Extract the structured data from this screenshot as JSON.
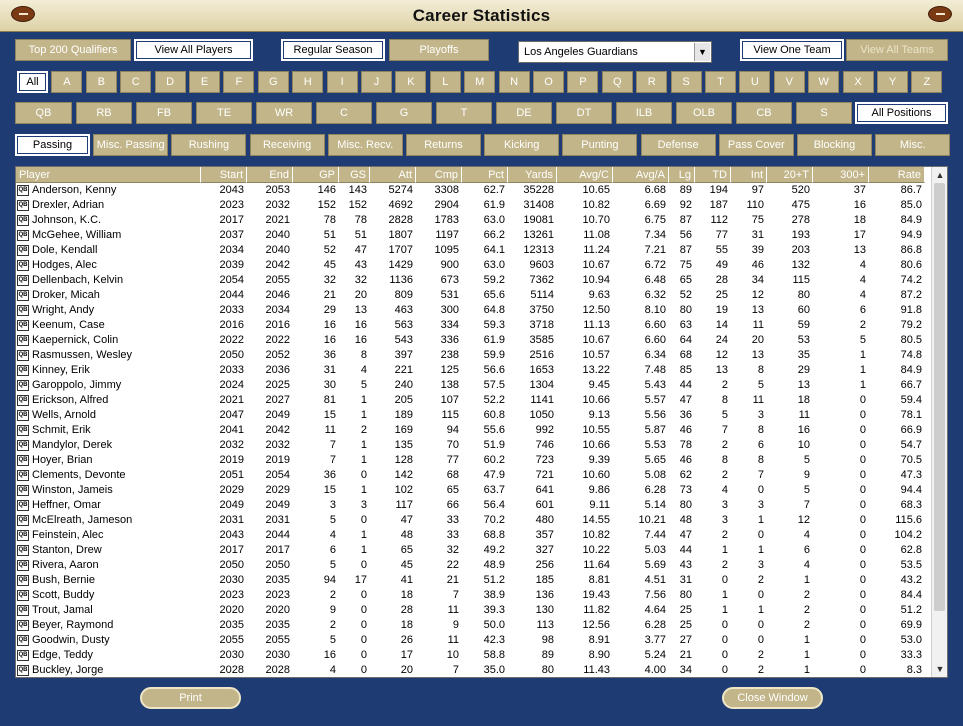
{
  "window": {
    "title": "Career Statistics"
  },
  "icons": {
    "left": "football-icon",
    "right": "football-icon"
  },
  "filters": {
    "top200": "Top 200 Qualifiers",
    "view_all_players": "View All Players",
    "regular_season": "Regular Season",
    "playoffs": "Playoffs",
    "team_select": "Los Angeles Guardians",
    "view_one_team": "View One Team",
    "view_all_teams": "View All Teams"
  },
  "letters": [
    "All",
    "A",
    "B",
    "C",
    "D",
    "E",
    "F",
    "G",
    "H",
    "I",
    "J",
    "K",
    "L",
    "M",
    "N",
    "O",
    "P",
    "Q",
    "R",
    "S",
    "T",
    "U",
    "V",
    "W",
    "X",
    "Y",
    "Z"
  ],
  "positions": [
    "QB",
    "RB",
    "FB",
    "TE",
    "WR",
    "C",
    "G",
    "T",
    "DE",
    "DT",
    "ILB",
    "OLB",
    "CB",
    "S",
    "All Positions"
  ],
  "categories": [
    "Passing",
    "Misc. Passing",
    "Rushing",
    "Receiving",
    "Misc. Recv.",
    "Returns",
    "Kicking",
    "Punting",
    "Defense",
    "Pass Cover",
    "Blocking",
    "Misc."
  ],
  "table": {
    "columns": [
      "Player",
      "Start",
      "End",
      "GP",
      "GS",
      "Att",
      "Cmp",
      "Pct",
      "Yards",
      "Avg/C",
      "Avg/A",
      "Lg",
      "TD",
      "Int",
      "20+T",
      "300+",
      "Rate"
    ],
    "pos_label": "QB",
    "rows": [
      [
        "Anderson, Kenny",
        "2043",
        "2053",
        "146",
        "143",
        "5274",
        "3308",
        "62.7",
        "35228",
        "10.65",
        "6.68",
        "89",
        "194",
        "97",
        "520",
        "37",
        "86.7"
      ],
      [
        "Drexler, Adrian",
        "2023",
        "2032",
        "152",
        "152",
        "4692",
        "2904",
        "61.9",
        "31408",
        "10.82",
        "6.69",
        "92",
        "187",
        "110",
        "475",
        "16",
        "85.0"
      ],
      [
        "Johnson, K.C.",
        "2017",
        "2021",
        "78",
        "78",
        "2828",
        "1783",
        "63.0",
        "19081",
        "10.70",
        "6.75",
        "87",
        "112",
        "75",
        "278",
        "18",
        "84.9"
      ],
      [
        "McGehee, William",
        "2037",
        "2040",
        "51",
        "51",
        "1807",
        "1197",
        "66.2",
        "13261",
        "11.08",
        "7.34",
        "56",
        "77",
        "31",
        "193",
        "17",
        "94.9"
      ],
      [
        "Dole, Kendall",
        "2034",
        "2040",
        "52",
        "47",
        "1707",
        "1095",
        "64.1",
        "12313",
        "11.24",
        "7.21",
        "87",
        "55",
        "39",
        "203",
        "13",
        "86.8"
      ],
      [
        "Hodges, Alec",
        "2039",
        "2042",
        "45",
        "43",
        "1429",
        "900",
        "63.0",
        "9603",
        "10.67",
        "6.72",
        "75",
        "49",
        "46",
        "132",
        "4",
        "80.6"
      ],
      [
        "Dellenbach, Kelvin",
        "2054",
        "2055",
        "32",
        "32",
        "1136",
        "673",
        "59.2",
        "7362",
        "10.94",
        "6.48",
        "65",
        "28",
        "34",
        "115",
        "4",
        "74.2"
      ],
      [
        "Droker, Micah",
        "2044",
        "2046",
        "21",
        "20",
        "809",
        "531",
        "65.6",
        "5114",
        "9.63",
        "6.32",
        "52",
        "25",
        "12",
        "80",
        "4",
        "87.2"
      ],
      [
        "Wright, Andy",
        "2033",
        "2034",
        "29",
        "13",
        "463",
        "300",
        "64.8",
        "3750",
        "12.50",
        "8.10",
        "80",
        "19",
        "13",
        "60",
        "6",
        "91.8"
      ],
      [
        "Keenum, Case",
        "2016",
        "2016",
        "16",
        "16",
        "563",
        "334",
        "59.3",
        "3718",
        "11.13",
        "6.60",
        "63",
        "14",
        "11",
        "59",
        "2",
        "79.2"
      ],
      [
        "Kaepernick, Colin",
        "2022",
        "2022",
        "16",
        "16",
        "543",
        "336",
        "61.9",
        "3585",
        "10.67",
        "6.60",
        "64",
        "24",
        "20",
        "53",
        "5",
        "80.5"
      ],
      [
        "Rasmussen, Wesley",
        "2050",
        "2052",
        "36",
        "8",
        "397",
        "238",
        "59.9",
        "2516",
        "10.57",
        "6.34",
        "68",
        "12",
        "13",
        "35",
        "1",
        "74.8"
      ],
      [
        "Kinney, Erik",
        "2033",
        "2036",
        "31",
        "4",
        "221",
        "125",
        "56.6",
        "1653",
        "13.22",
        "7.48",
        "85",
        "13",
        "8",
        "29",
        "1",
        "84.9"
      ],
      [
        "Garoppolo, Jimmy",
        "2024",
        "2025",
        "30",
        "5",
        "240",
        "138",
        "57.5",
        "1304",
        "9.45",
        "5.43",
        "44",
        "2",
        "5",
        "13",
        "1",
        "66.7"
      ],
      [
        "Erickson, Alfred",
        "2021",
        "2027",
        "81",
        "1",
        "205",
        "107",
        "52.2",
        "1141",
        "10.66",
        "5.57",
        "47",
        "8",
        "11",
        "18",
        "0",
        "59.4"
      ],
      [
        "Wells, Arnold",
        "2047",
        "2049",
        "15",
        "1",
        "189",
        "115",
        "60.8",
        "1050",
        "9.13",
        "5.56",
        "36",
        "5",
        "3",
        "11",
        "0",
        "78.1"
      ],
      [
        "Schmit, Erik",
        "2041",
        "2042",
        "11",
        "2",
        "169",
        "94",
        "55.6",
        "992",
        "10.55",
        "5.87",
        "46",
        "7",
        "8",
        "16",
        "0",
        "66.9"
      ],
      [
        "Mandylor, Derek",
        "2032",
        "2032",
        "7",
        "1",
        "135",
        "70",
        "51.9",
        "746",
        "10.66",
        "5.53",
        "78",
        "2",
        "6",
        "10",
        "0",
        "54.7"
      ],
      [
        "Hoyer, Brian",
        "2019",
        "2019",
        "7",
        "1",
        "128",
        "77",
        "60.2",
        "723",
        "9.39",
        "5.65",
        "46",
        "8",
        "8",
        "5",
        "0",
        "70.5"
      ],
      [
        "Clements, Devonte",
        "2051",
        "2054",
        "36",
        "0",
        "142",
        "68",
        "47.9",
        "721",
        "10.60",
        "5.08",
        "62",
        "2",
        "7",
        "9",
        "0",
        "47.3"
      ],
      [
        "Winston, Jameis",
        "2029",
        "2029",
        "15",
        "1",
        "102",
        "65",
        "63.7",
        "641",
        "9.86",
        "6.28",
        "73",
        "4",
        "0",
        "5",
        "0",
        "94.4"
      ],
      [
        "Heffner, Omar",
        "2049",
        "2049",
        "3",
        "3",
        "117",
        "66",
        "56.4",
        "601",
        "9.11",
        "5.14",
        "80",
        "3",
        "3",
        "7",
        "0",
        "68.3"
      ],
      [
        "McElreath, Jameson",
        "2031",
        "2031",
        "5",
        "0",
        "47",
        "33",
        "70.2",
        "480",
        "14.55",
        "10.21",
        "48",
        "3",
        "1",
        "12",
        "0",
        "115.6"
      ],
      [
        "Feinstein, Alec",
        "2043",
        "2044",
        "4",
        "1",
        "48",
        "33",
        "68.8",
        "357",
        "10.82",
        "7.44",
        "47",
        "2",
        "0",
        "4",
        "0",
        "104.2"
      ],
      [
        "Stanton, Drew",
        "2017",
        "2017",
        "6",
        "1",
        "65",
        "32",
        "49.2",
        "327",
        "10.22",
        "5.03",
        "44",
        "1",
        "1",
        "6",
        "0",
        "62.8"
      ],
      [
        "Rivera, Aaron",
        "2050",
        "2050",
        "5",
        "0",
        "45",
        "22",
        "48.9",
        "256",
        "11.64",
        "5.69",
        "43",
        "2",
        "3",
        "4",
        "0",
        "53.5"
      ],
      [
        "Bush, Bernie",
        "2030",
        "2035",
        "94",
        "17",
        "41",
        "21",
        "51.2",
        "185",
        "8.81",
        "4.51",
        "31",
        "0",
        "2",
        "1",
        "0",
        "43.2"
      ],
      [
        "Scott, Buddy",
        "2023",
        "2023",
        "2",
        "0",
        "18",
        "7",
        "38.9",
        "136",
        "19.43",
        "7.56",
        "80",
        "1",
        "0",
        "2",
        "0",
        "84.4"
      ],
      [
        "Trout, Jamal",
        "2020",
        "2020",
        "9",
        "0",
        "28",
        "11",
        "39.3",
        "130",
        "11.82",
        "4.64",
        "25",
        "1",
        "1",
        "2",
        "0",
        "51.2"
      ],
      [
        "Beyer, Raymond",
        "2035",
        "2035",
        "2",
        "0",
        "18",
        "9",
        "50.0",
        "113",
        "12.56",
        "6.28",
        "25",
        "0",
        "0",
        "2",
        "0",
        "69.9"
      ],
      [
        "Goodwin, Dusty",
        "2055",
        "2055",
        "5",
        "0",
        "26",
        "11",
        "42.3",
        "98",
        "8.91",
        "3.77",
        "27",
        "0",
        "0",
        "1",
        "0",
        "53.0"
      ],
      [
        "Edge, Teddy",
        "2030",
        "2030",
        "16",
        "0",
        "17",
        "10",
        "58.8",
        "89",
        "8.90",
        "5.24",
        "21",
        "0",
        "2",
        "1",
        "0",
        "33.3"
      ],
      [
        "Buckley, Jorge",
        "2028",
        "2028",
        "4",
        "0",
        "20",
        "7",
        "35.0",
        "80",
        "11.43",
        "4.00",
        "34",
        "0",
        "2",
        "1",
        "0",
        "8.3"
      ]
    ]
  },
  "footer": {
    "print": "Print",
    "close": "Close Window"
  }
}
